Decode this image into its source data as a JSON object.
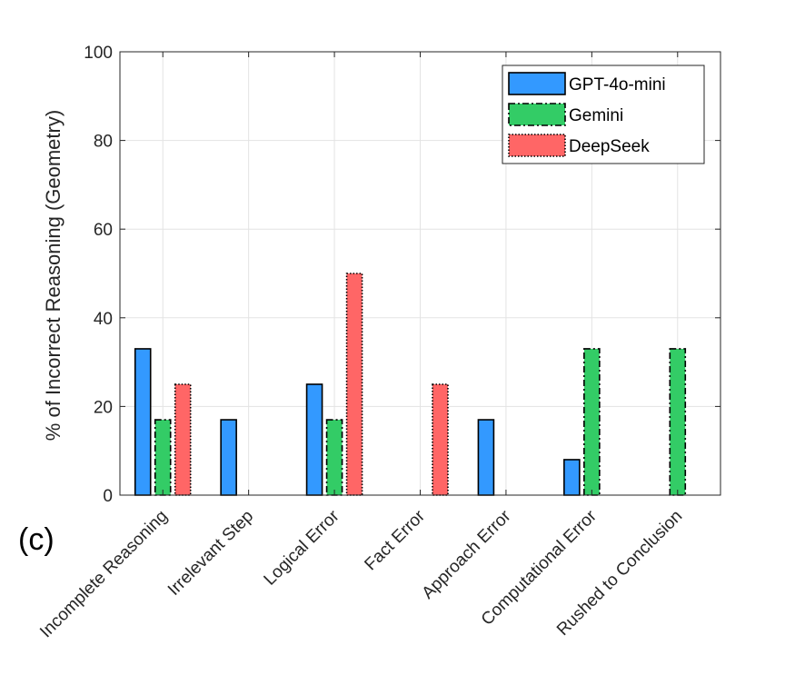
{
  "chart_data": {
    "type": "bar",
    "title": "",
    "panel_label": "(c)",
    "xlabel": "",
    "ylabel": "% of Incorrect Reasoning (Geometry)",
    "ylim": [
      0,
      100
    ],
    "yticks": [
      "0",
      "20",
      "40",
      "60",
      "80",
      "100"
    ],
    "grid": true,
    "legend_position": "top-right",
    "categories": [
      "Incomplete Reasoning",
      "Irrelevant Step",
      "Logical Error",
      "Fact Error",
      "Approach Error",
      "Computational Error",
      "Rushed to Conclusion"
    ],
    "series": [
      {
        "name": "GPT-4o-mini",
        "color": "#3399FF",
        "edge": "solid",
        "values": [
          33,
          17,
          25,
          0,
          17,
          8,
          0
        ]
      },
      {
        "name": "Gemini",
        "color": "#33CC66",
        "edge": "dashdot",
        "values": [
          17,
          0,
          17,
          0,
          0,
          33,
          33
        ]
      },
      {
        "name": "DeepSeek",
        "color": "#FF6666",
        "edge": "dotted",
        "values": [
          25,
          0,
          50,
          25,
          0,
          0,
          0
        ]
      }
    ]
  }
}
